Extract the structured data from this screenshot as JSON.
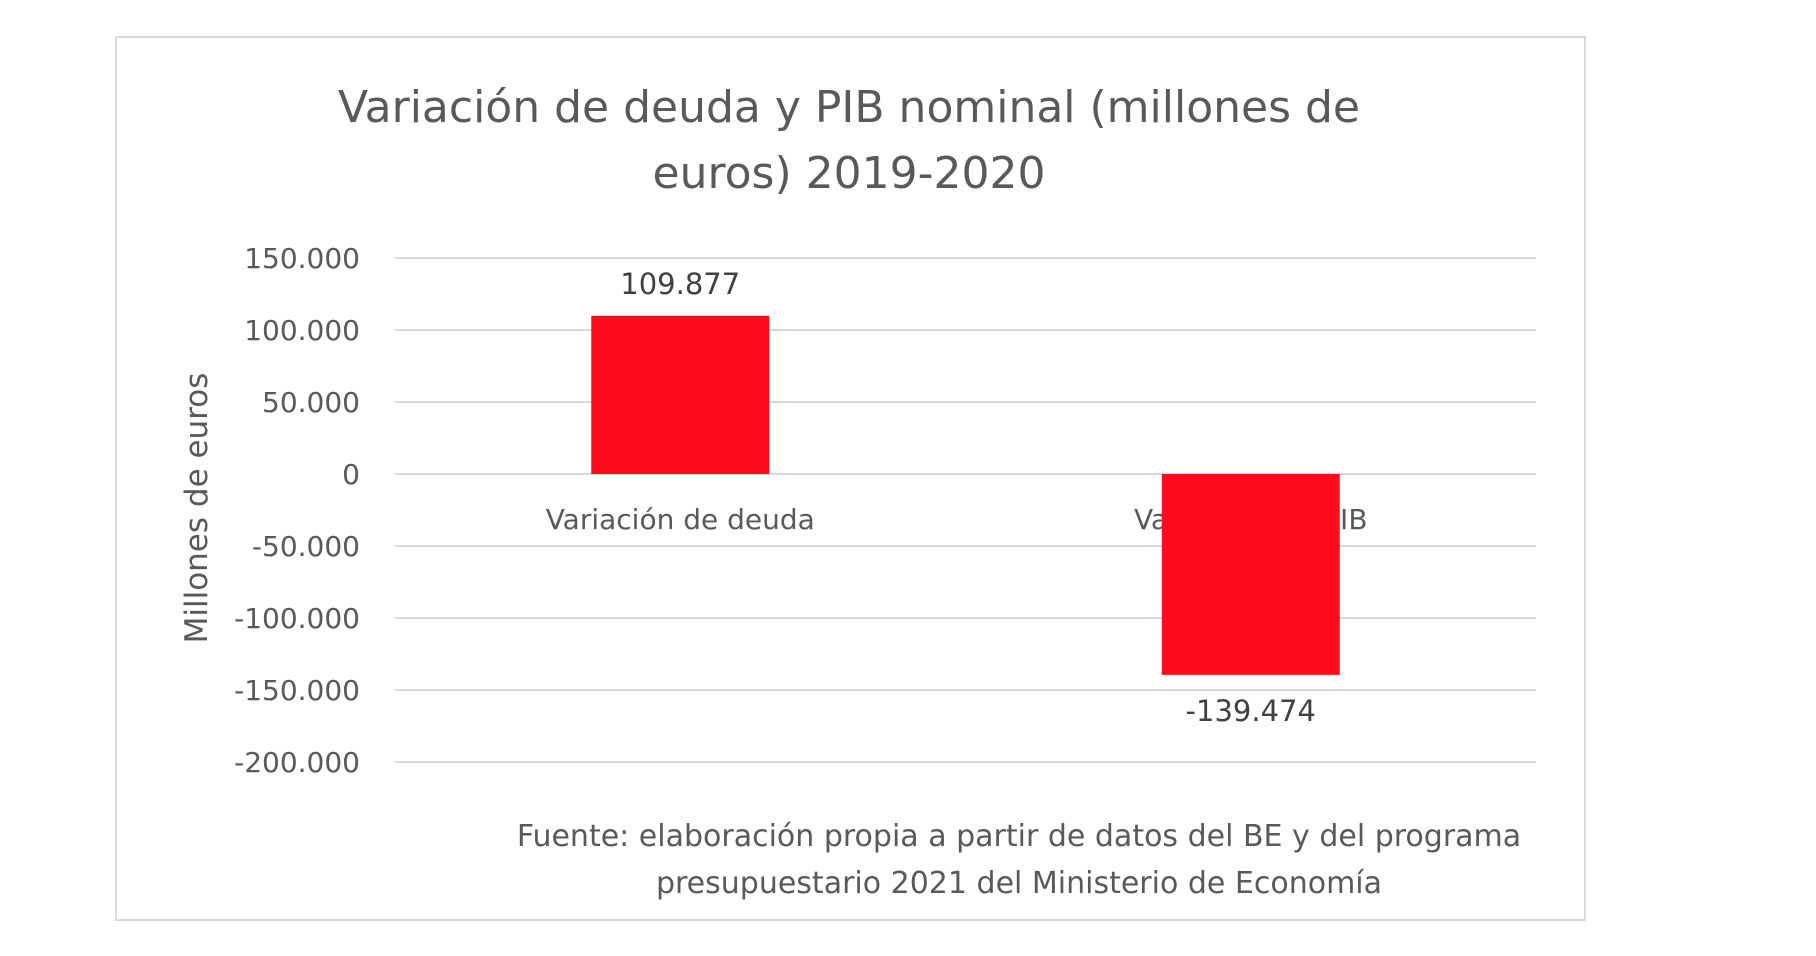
{
  "chart_data": {
    "type": "bar",
    "title_lines": [
      "Variación de deuda y PIB nominal (millones de",
      "euros) 2019-2020"
    ],
    "ylabel": "Millones de euros",
    "xlabel": "",
    "categories": [
      "Variación de deuda",
      "Variación del PIB"
    ],
    "values": [
      109877,
      -139474
    ],
    "data_labels": [
      "109.877",
      "-139.474"
    ],
    "ylim": [
      -200000,
      150000
    ],
    "yticks": [
      150000,
      100000,
      50000,
      0,
      -50000,
      -100000,
      -150000,
      -200000
    ],
    "ytick_labels": [
      "150.000",
      "100.000",
      "50.000",
      "0",
      "-50.000",
      "-100.000",
      "-150.000",
      "-200.000"
    ],
    "grid": true,
    "legend": "none",
    "bar_color": "#fe0b1e",
    "source_lines": [
      "Fuente: elaboración propia a partir de datos del BE y del programa",
      "presupuestario 2021 del Ministerio de Economía"
    ]
  }
}
